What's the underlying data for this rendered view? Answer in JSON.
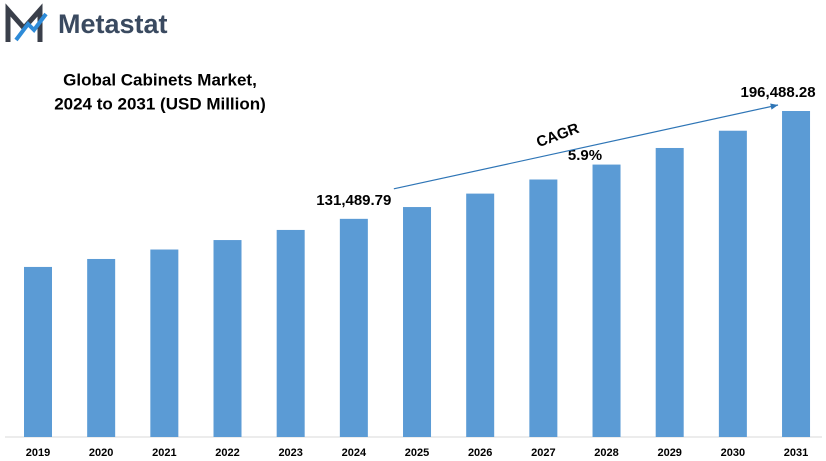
{
  "brand": "Metastat",
  "chart_data": {
    "type": "bar",
    "title": [
      "Global Cabinets Market,",
      "2024 to 2031 (USD Million)"
    ],
    "categories": [
      "2019",
      "2020",
      "2021",
      "2022",
      "2023",
      "2024",
      "2025",
      "2026",
      "2027",
      "2028",
      "2029",
      "2030",
      "2031"
    ],
    "values": [
      102500,
      107300,
      113000,
      118700,
      124800,
      131489.79,
      138600,
      146700,
      155200,
      164200,
      174200,
      184600,
      196488.28
    ],
    "value_labels": [
      null,
      null,
      null,
      null,
      null,
      "131,489.79",
      null,
      null,
      null,
      null,
      null,
      null,
      "196,488.28"
    ],
    "color": "#5b9bd5",
    "annotations": [
      "CAGR",
      "5.9%"
    ]
  }
}
